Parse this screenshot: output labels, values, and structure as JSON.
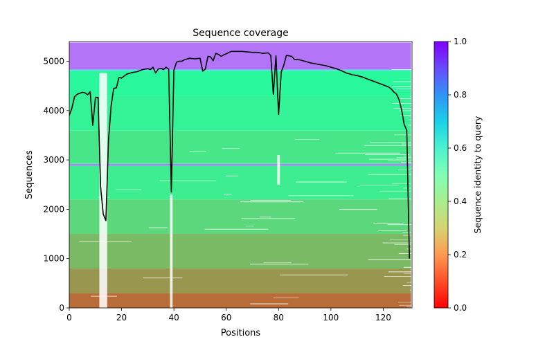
{
  "chart_data": {
    "type": "heatmap",
    "title": "Sequence coverage",
    "xlabel": "Positions",
    "ylabel": "Sequences",
    "xlim": [
      0,
      131
    ],
    "ylim": [
      0,
      5400
    ],
    "xticks": [
      0,
      20,
      40,
      60,
      80,
      100,
      120
    ],
    "yticks": [
      0,
      1000,
      2000,
      3000,
      4000,
      5000
    ],
    "colorbar": {
      "label": "Sequence identity to query",
      "range": [
        0,
        1
      ],
      "ticks": [
        "0.0",
        "0.2",
        "0.4",
        "0.6",
        "0.8",
        "1.0"
      ],
      "colormap": "rainbow"
    },
    "identity_bands": [
      {
        "y0": 0,
        "y1": 300,
        "identity": 0.14
      },
      {
        "y0": 300,
        "y1": 800,
        "identity": 0.2
      },
      {
        "y0": 800,
        "y1": 1500,
        "identity": 0.26
      },
      {
        "y0": 1500,
        "y1": 2200,
        "identity": 0.32
      },
      {
        "y0": 2200,
        "y1": 2880,
        "identity": 0.38
      },
      {
        "y0": 2880,
        "y1": 2920,
        "identity": 0.82
      },
      {
        "y0": 2920,
        "y1": 3600,
        "identity": 0.36
      },
      {
        "y0": 3600,
        "y1": 4300,
        "identity": 0.4
      },
      {
        "y0": 4300,
        "y1": 4800,
        "identity": 0.42
      },
      {
        "y0": 4800,
        "y1": 4830,
        "identity": 0.62
      },
      {
        "y0": 4830,
        "y1": 5380,
        "identity": 0.85
      }
    ],
    "gaps": [
      {
        "x0": 11.5,
        "x1": 14.5,
        "y0": 0,
        "y1": 4760
      },
      {
        "x0": 38.5,
        "x1": 39.5,
        "y0": 0,
        "y1": 2300
      },
      {
        "x0": 79.5,
        "x1": 80.5,
        "y0": 2500,
        "y1": 3100
      }
    ],
    "series": [
      {
        "type": "line",
        "color": "#000000",
        "x": [
          0,
          1,
          2,
          3,
          4,
          5,
          6,
          7,
          8,
          9,
          10,
          11,
          12,
          13,
          14,
          15,
          16,
          17,
          18,
          19,
          20,
          22,
          24,
          26,
          28,
          30,
          31,
          32,
          33,
          34,
          35,
          36,
          37,
          38,
          39,
          40,
          41,
          42,
          43,
          44,
          46,
          48,
          50,
          51,
          52,
          53,
          54,
          55,
          56,
          57,
          58,
          59,
          60,
          61,
          62,
          64,
          66,
          68,
          70,
          72,
          74,
          76,
          77,
          78,
          79,
          80,
          81,
          82,
          83,
          84,
          85,
          86,
          88,
          90,
          92,
          94,
          96,
          98,
          100,
          102,
          104,
          106,
          108,
          110,
          112,
          114,
          116,
          118,
          120,
          122,
          123,
          124,
          125,
          126,
          127,
          128,
          129,
          130
        ],
        "y": [
          3900,
          4050,
          4280,
          4330,
          4350,
          4370,
          4360,
          4320,
          4380,
          3700,
          4260,
          4270,
          2450,
          1900,
          1770,
          3400,
          4100,
          4450,
          4460,
          4670,
          4660,
          4740,
          4770,
          4790,
          4830,
          4850,
          4830,
          4880,
          4760,
          4840,
          4860,
          4830,
          4880,
          4840,
          2350,
          4820,
          4980,
          5000,
          5000,
          5030,
          5060,
          5050,
          5060,
          4800,
          4840,
          5100,
          5090,
          5010,
          5160,
          5140,
          5100,
          5130,
          5150,
          5180,
          5200,
          5200,
          5200,
          5190,
          5180,
          5180,
          5160,
          5170,
          5120,
          4330,
          5110,
          3920,
          4780,
          4920,
          5120,
          5110,
          5100,
          5040,
          5030,
          5000,
          4970,
          4950,
          4930,
          4910,
          4880,
          4850,
          4810,
          4760,
          4730,
          4710,
          4680,
          4640,
          4600,
          4560,
          4520,
          4480,
          4440,
          4380,
          4340,
          4230,
          4020,
          3720,
          3600,
          1000
        ]
      }
    ]
  }
}
